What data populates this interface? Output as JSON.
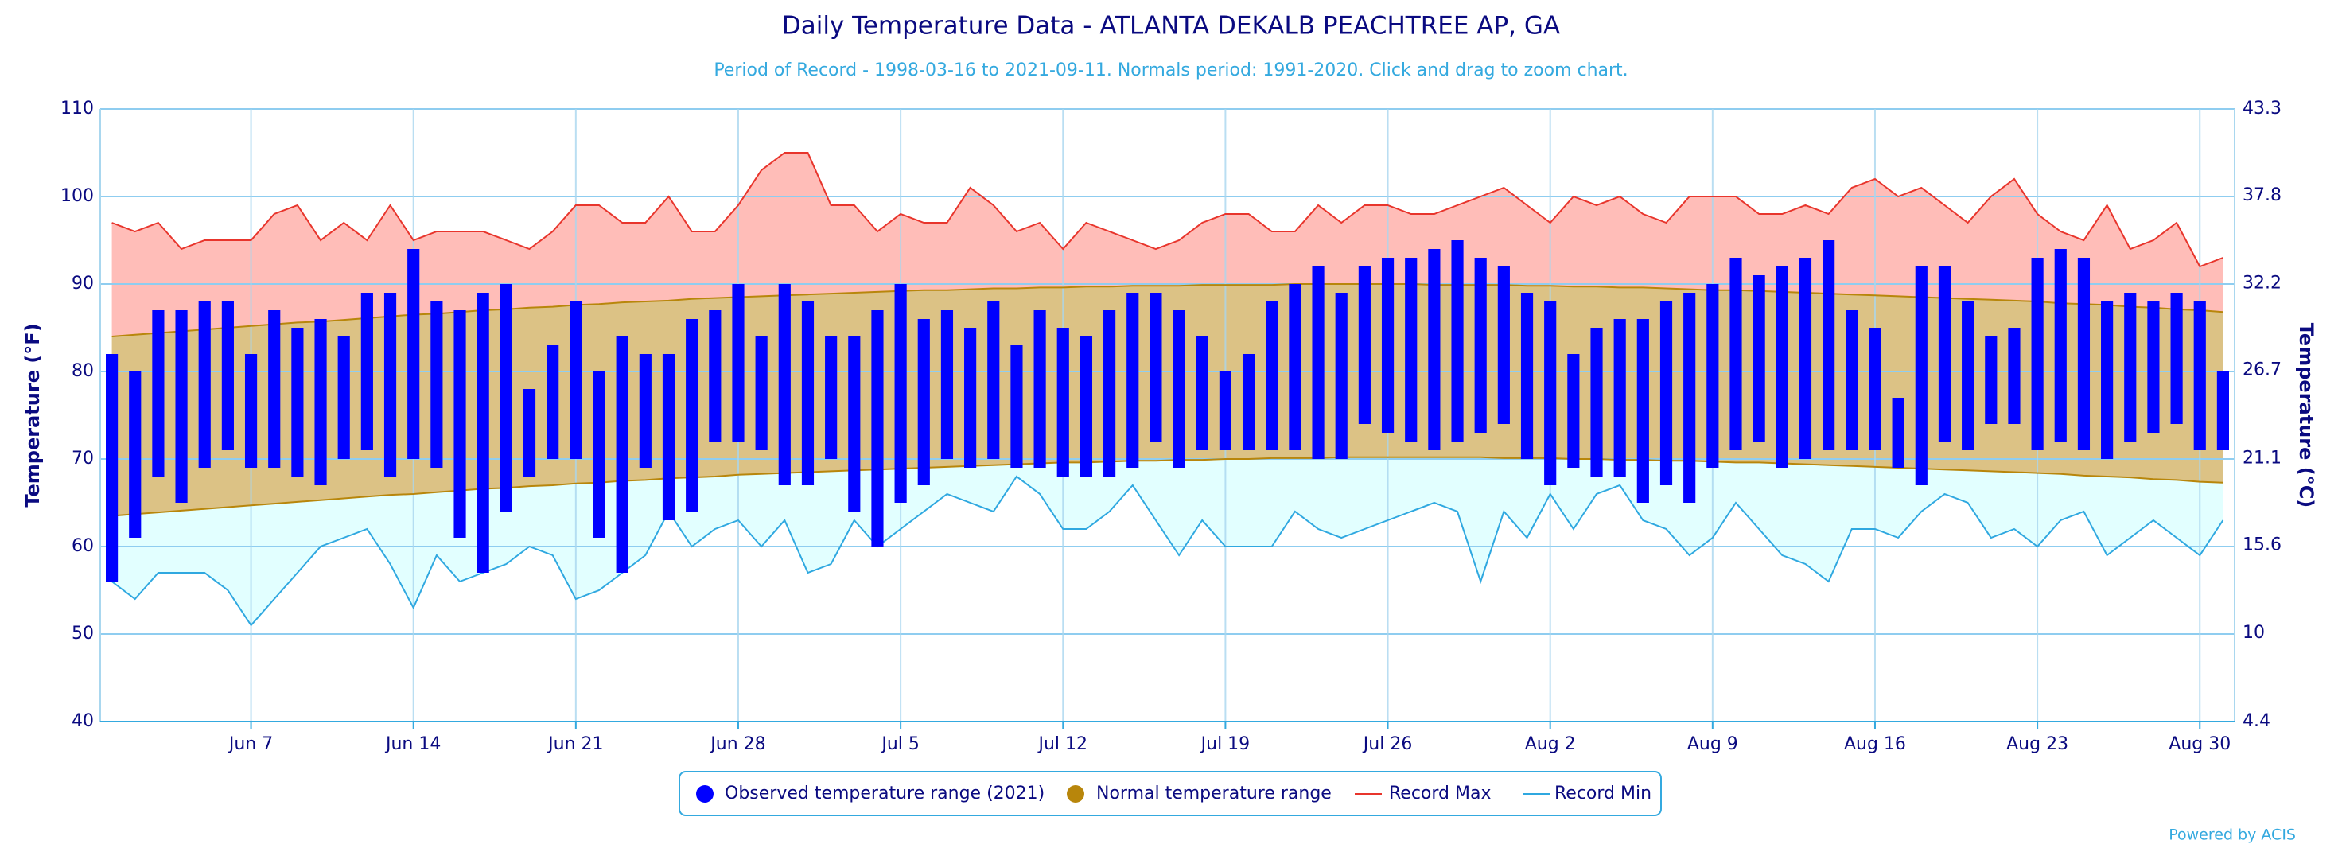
{
  "chart_data": {
    "type": "temperature-range",
    "title": "Daily Temperature Data - ATLANTA DEKALB PEACHTREE AP, GA",
    "subtitle": "Period of Record - 1998-03-16 to 2021-09-11. Normals period: 1991-2020. Click and drag to zoom chart.",
    "ylabel": "Temperature (°F)",
    "y2label": "Temperature (°C)",
    "credit": "Powered by ACIS",
    "categories": [
      null,
      null,
      null,
      null,
      null,
      null,
      "Jun 7",
      null,
      null,
      null,
      null,
      null,
      null,
      "Jun 14",
      null,
      null,
      null,
      null,
      null,
      null,
      "Jun 21",
      null,
      null,
      null,
      null,
      null,
      null,
      "Jun 28",
      null,
      null,
      null,
      null,
      null,
      null,
      "Jul 5",
      null,
      null,
      null,
      null,
      null,
      null,
      "Jul 12",
      null,
      null,
      null,
      null,
      null,
      null,
      "Jul 19",
      null,
      null,
      null,
      null,
      null,
      null,
      "Jul 26",
      null,
      null,
      null,
      null,
      null,
      null,
      "Aug 2",
      null,
      null,
      null,
      null,
      null,
      null,
      "Aug 9",
      null,
      null,
      null,
      null,
      null,
      null,
      "Aug 16",
      null,
      null,
      null,
      null,
      null,
      null,
      "Aug 23",
      null,
      null,
      null,
      null,
      null,
      null,
      "Aug 30",
      null
    ],
    "ylim": [
      40,
      110
    ],
    "yticks": [
      40,
      50,
      60,
      70,
      80,
      90,
      100,
      110
    ],
    "y2lim": [
      4.4,
      43.3
    ],
    "y2ticks": [
      4.4,
      10,
      15.6,
      21.1,
      26.7,
      32.2,
      37.8,
      43.3
    ],
    "grid": true,
    "legend": "bottom",
    "series": [
      {
        "name": "Observed temperature range (2021)",
        "color": "#0000ff",
        "high": [
          82,
          80,
          87,
          87,
          88,
          88,
          82,
          87,
          85,
          86,
          84,
          89,
          89,
          94,
          88,
          87,
          89,
          90,
          78,
          83,
          88,
          80,
          84,
          82,
          82,
          86,
          87,
          90,
          84,
          90,
          88,
          84,
          84,
          87,
          90,
          86,
          87,
          85,
          88,
          83,
          87,
          85,
          84,
          87,
          89,
          89,
          87,
          84,
          80,
          82,
          88,
          90,
          92,
          89,
          92,
          93,
          93,
          94,
          95,
          93,
          92,
          89,
          88,
          82,
          85,
          86,
          86,
          88,
          89,
          90,
          93,
          91,
          92,
          93,
          95,
          87,
          85,
          77,
          92,
          92,
          88,
          84,
          85,
          93,
          94,
          93,
          88,
          89,
          88,
          89,
          88,
          80
        ],
        "low": [
          56,
          61,
          68,
          65,
          69,
          71,
          69,
          69,
          68,
          67,
          70,
          71,
          68,
          70,
          69,
          61,
          57,
          64,
          68,
          70,
          70,
          61,
          57,
          69,
          63,
          64,
          72,
          72,
          71,
          67,
          67,
          70,
          64,
          60,
          65,
          67,
          70,
          69,
          70,
          69,
          69,
          68,
          68,
          68,
          69,
          72,
          69,
          71,
          71,
          71,
          71,
          71,
          70,
          70,
          74,
          73,
          72,
          71,
          72,
          73,
          74,
          70,
          67,
          69,
          68,
          68,
          65,
          67,
          65,
          69,
          71,
          72,
          69,
          70,
          71,
          71,
          71,
          69,
          67,
          72,
          71,
          74,
          74,
          71,
          72,
          71,
          70,
          72,
          73,
          74,
          71,
          71
        ]
      },
      {
        "name": "Normal temperature range",
        "color": "#b8860b",
        "fill": "#dcc285",
        "high": [
          84.0,
          84.2,
          84.4,
          84.6,
          84.8,
          85.0,
          85.2,
          85.4,
          85.6,
          85.7,
          85.9,
          86.1,
          86.3,
          86.5,
          86.6,
          86.8,
          87.0,
          87.1,
          87.3,
          87.4,
          87.6,
          87.7,
          87.9,
          88.0,
          88.1,
          88.3,
          88.4,
          88.5,
          88.6,
          88.7,
          88.8,
          88.9,
          89.0,
          89.1,
          89.2,
          89.3,
          89.3,
          89.4,
          89.5,
          89.5,
          89.6,
          89.6,
          89.7,
          89.7,
          89.8,
          89.8,
          89.8,
          89.9,
          89.9,
          89.9,
          89.9,
          90.0,
          90.0,
          90.0,
          90.0,
          90.0,
          90.0,
          89.9,
          89.9,
          89.9,
          89.9,
          89.8,
          89.8,
          89.7,
          89.7,
          89.6,
          89.6,
          89.5,
          89.4,
          89.3,
          89.3,
          89.2,
          89.1,
          89.0,
          88.9,
          88.8,
          88.7,
          88.6,
          88.5,
          88.4,
          88.3,
          88.2,
          88.1,
          88.0,
          87.8,
          87.7,
          87.6,
          87.4,
          87.3,
          87.1,
          87.0,
          86.8
        ],
        "low": [
          63.5,
          63.7,
          63.9,
          64.1,
          64.3,
          64.5,
          64.7,
          64.9,
          65.1,
          65.3,
          65.5,
          65.7,
          65.9,
          66.0,
          66.2,
          66.4,
          66.6,
          66.7,
          66.9,
          67.0,
          67.2,
          67.3,
          67.5,
          67.6,
          67.8,
          67.9,
          68.0,
          68.2,
          68.3,
          68.4,
          68.5,
          68.6,
          68.7,
          68.8,
          68.9,
          69.0,
          69.1,
          69.2,
          69.3,
          69.4,
          69.5,
          69.6,
          69.6,
          69.7,
          69.8,
          69.8,
          69.9,
          69.9,
          70.0,
          70.0,
          70.1,
          70.1,
          70.1,
          70.2,
          70.2,
          70.2,
          70.2,
          70.2,
          70.2,
          70.2,
          70.1,
          70.1,
          70.1,
          70.0,
          70.0,
          69.9,
          69.9,
          69.8,
          69.8,
          69.7,
          69.6,
          69.6,
          69.5,
          69.4,
          69.3,
          69.2,
          69.1,
          69.0,
          68.9,
          68.8,
          68.7,
          68.6,
          68.5,
          68.4,
          68.3,
          68.1,
          68.0,
          67.9,
          67.7,
          67.6,
          67.4,
          67.3
        ]
      },
      {
        "name": "Record Max",
        "color": "#e8352c",
        "fill": "#ffbdb8",
        "values": [
          97,
          96,
          97,
          94,
          95,
          95,
          95,
          98,
          99,
          95,
          97,
          95,
          99,
          95,
          96,
          96,
          96,
          95,
          94,
          96,
          99,
          99,
          97,
          97,
          100,
          96,
          96,
          99,
          103,
          105,
          105,
          99,
          99,
          96,
          98,
          97,
          97,
          101,
          99,
          96,
          97,
          94,
          97,
          96,
          95,
          94,
          95,
          97,
          98,
          98,
          96,
          96,
          99,
          97,
          99,
          99,
          98,
          98,
          99,
          100,
          101,
          99,
          97,
          100,
          99,
          100,
          98,
          97,
          100,
          100,
          100,
          98,
          98,
          99,
          98,
          101,
          102,
          100,
          101,
          99,
          97,
          100,
          102,
          98,
          96,
          95,
          99,
          94,
          95,
          97,
          92,
          93
        ]
      },
      {
        "name": "Record Min",
        "color": "#2fa8e0",
        "fill": "#e2ffff",
        "values": [
          56,
          54,
          57,
          57,
          57,
          55,
          51,
          54,
          57,
          60,
          61,
          62,
          58,
          53,
          59,
          56,
          57,
          58,
          60,
          59,
          54,
          55,
          57,
          59,
          64,
          60,
          62,
          63,
          60,
          63,
          57,
          58,
          63,
          60,
          62,
          64,
          66,
          65,
          64,
          68,
          66,
          62,
          62,
          64,
          67,
          63,
          59,
          63,
          60,
          60,
          60,
          64,
          62,
          61,
          62,
          63,
          64,
          65,
          64,
          56,
          64,
          61,
          66,
          62,
          66,
          67,
          63,
          62,
          59,
          61,
          65,
          62,
          59,
          58,
          56,
          62,
          62,
          61,
          64,
          66,
          65,
          61,
          62,
          60,
          63,
          64,
          59,
          61,
          63,
          61,
          59,
          63
        ]
      }
    ]
  }
}
